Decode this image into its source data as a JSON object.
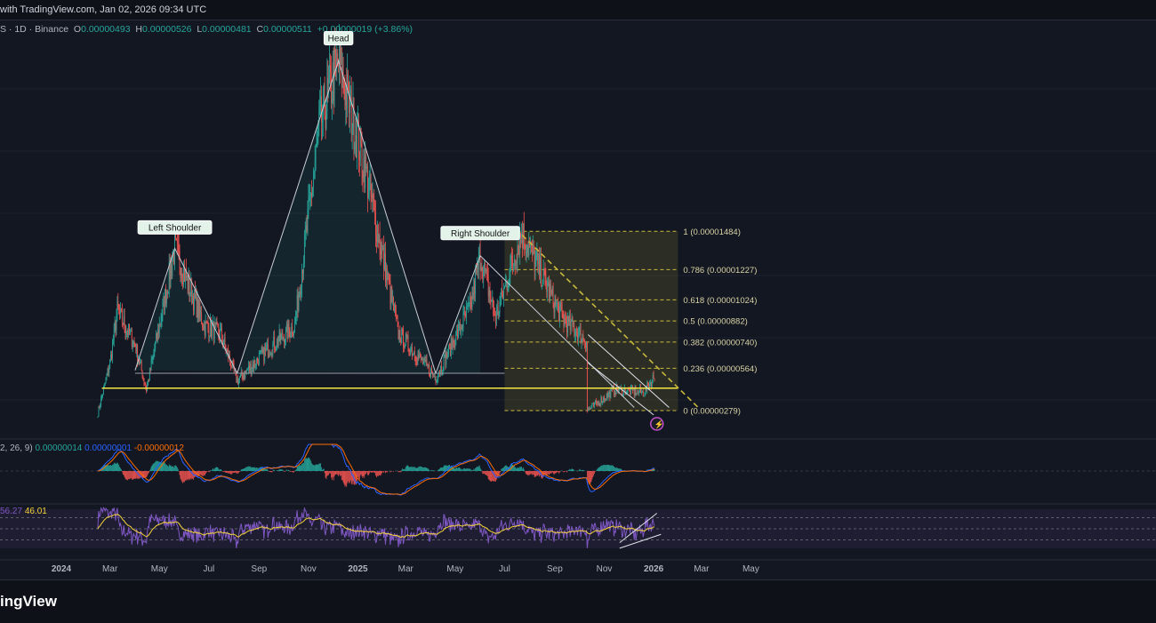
{
  "header": {
    "watermark": "with TradingView.com, Jan 02, 2026 09:34 UTC"
  },
  "symbol_bar": {
    "symbol_info": "S · 1D · Binance",
    "open_label": "O",
    "open": "0.00000493",
    "high_label": "H",
    "high": "0.00000526",
    "low_label": "L",
    "low": "0.00000481",
    "close_label": "C",
    "close": "0.00000511",
    "change": "+0.00000019 (+3.86%)"
  },
  "colors": {
    "background": "#131722",
    "up": "#26a69a",
    "down": "#ef5350",
    "pattern_line": "#c8ccd4",
    "fib": "#c8b93c",
    "neckline": "#f5e642",
    "macd_line": "#2962ff",
    "signal_line": "#ff6d00",
    "rsi_line": "#7e57c2"
  },
  "chart_data": {
    "type": "candlestick",
    "symbol": "S",
    "interval": "1D",
    "exchange": "Binance",
    "x_ticks": [
      "2024",
      "Mar",
      "May",
      "Jul",
      "Sep",
      "Nov",
      "2025",
      "Mar",
      "May",
      "Jul",
      "Sep",
      "Nov",
      "2026",
      "Mar",
      "May"
    ],
    "price_path": [
      {
        "date": "2024-02-15",
        "price": 2.6e-06
      },
      {
        "date": "2024-03-01",
        "price": 6e-06
      },
      {
        "date": "2024-03-10",
        "price": 9.5e-06
      },
      {
        "date": "2024-04-01",
        "price": 7.2e-06
      },
      {
        "date": "2024-04-15",
        "price": 4.2e-06
      },
      {
        "date": "2024-05-20",
        "price": 1.37e-05
      },
      {
        "date": "2024-06-25",
        "price": 8.5e-06
      },
      {
        "date": "2024-07-15",
        "price": 8e-06
      },
      {
        "date": "2024-08-05",
        "price": 4.8e-06
      },
      {
        "date": "2024-09-10",
        "price": 6.8e-06
      },
      {
        "date": "2024-10-15",
        "price": 8.5e-06
      },
      {
        "date": "2024-11-15",
        "price": 2.2e-05
      },
      {
        "date": "2024-12-08",
        "price": 2.63e-05
      },
      {
        "date": "2025-01-10",
        "price": 1.9e-05
      },
      {
        "date": "2025-02-20",
        "price": 8e-06
      },
      {
        "date": "2025-04-07",
        "price": 5e-06
      },
      {
        "date": "2025-05-20",
        "price": 9.8e-06
      },
      {
        "date": "2025-06-01",
        "price": 1.32e-05
      },
      {
        "date": "2025-06-20",
        "price": 9e-06
      },
      {
        "date": "2025-07-22",
        "price": 1.48e-05
      },
      {
        "date": "2025-09-10",
        "price": 9e-06
      },
      {
        "date": "2025-10-10",
        "price": 7.5e-06
      },
      {
        "date": "2025-10-11",
        "price": 2.8e-06
      },
      {
        "date": "2025-11-15",
        "price": 4.2e-06
      },
      {
        "date": "2025-12-20",
        "price": 4e-06
      },
      {
        "date": "2026-01-02",
        "price": 5.1e-06
      }
    ],
    "pattern_points": [
      {
        "name": "left_shoulder_start",
        "date": "2024-04-01",
        "price": 5.5e-06
      },
      {
        "name": "left_shoulder",
        "date": "2024-05-20",
        "price": 1.37e-05
      },
      {
        "name": "neck_1",
        "date": "2024-08-05",
        "price": 5.3e-06
      },
      {
        "name": "head",
        "date": "2024-12-08",
        "price": 2.63e-05
      },
      {
        "name": "neck_2",
        "date": "2025-04-07",
        "price": 5.3e-06
      },
      {
        "name": "right_shoulder",
        "date": "2025-06-01",
        "price": 1.32e-05
      },
      {
        "name": "right_shoulder_end",
        "date": "2025-12-08",
        "price": 3e-06
      }
    ],
    "annotations": [
      "Left Shoulder",
      "Head",
      "Right Shoulder"
    ],
    "neckline_price": 4.3e-06,
    "fibonacci": {
      "start_date": "2025-07-01",
      "end_date": "2026-01-31",
      "levels": [
        {
          "ratio": "1",
          "price": "0.00001484",
          "label": "1 (0.00001484)"
        },
        {
          "ratio": "0.786",
          "price": "0.00001227",
          "label": "0.786 (0.00001227)"
        },
        {
          "ratio": "0.618",
          "price": "0.00001024",
          "label": "0.618 (0.00001024)"
        },
        {
          "ratio": "0.5",
          "price": "0.00000882",
          "label": "0.5 (0.00000882)"
        },
        {
          "ratio": "0.382",
          "price": "0.00000740",
          "label": "0.382 (0.00000740)"
        },
        {
          "ratio": "0.236",
          "price": "0.00000564",
          "label": "0.236 (0.00000564)"
        },
        {
          "ratio": "0",
          "price": "0.00000279",
          "label": "0 (0.00000279)"
        }
      ]
    },
    "macd": {
      "params": "2, 26, 9)",
      "histogram": "0.00000014",
      "macd": "0.00000001",
      "signal": "-0.00000012"
    },
    "rsi": {
      "value": "56.27",
      "ma": "46.01",
      "bands": [
        70,
        50,
        30
      ]
    }
  },
  "footer": {
    "logo": "ingView"
  }
}
